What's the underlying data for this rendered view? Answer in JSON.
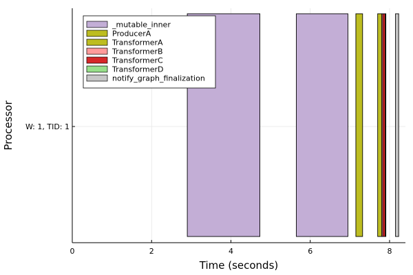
{
  "chart_data": {
    "type": "gantt",
    "xlabel": "Time (seconds)",
    "ylabel": "Processor",
    "xlim": [
      0,
      8.4
    ],
    "xticks": [
      0,
      2,
      4,
      6,
      8
    ],
    "yticks": [
      "W: 1, TID: 1"
    ],
    "grid": true,
    "legend_position": "top-left",
    "series": [
      {
        "name": "_mutable_inner",
        "color": "#C3AED6"
      },
      {
        "name": "ProducerA",
        "color": "#BDBD21"
      },
      {
        "name": "TransformerA",
        "color": "#BDBD21"
      },
      {
        "name": "TransformerB",
        "color": "#FF9B9B"
      },
      {
        "name": "TransformerC",
        "color": "#D62728"
      },
      {
        "name": "TransformerD",
        "color": "#98DF8A"
      },
      {
        "name": "notify_graph_finalization",
        "color": "#C7C7C7"
      }
    ],
    "tasks": [
      {
        "series": "_mutable_inner",
        "start": 2.9,
        "end": 4.73
      },
      {
        "series": "_mutable_inner",
        "start": 5.65,
        "end": 6.95
      },
      {
        "series": "ProducerA",
        "start": 7.15,
        "end": 7.32
      },
      {
        "series": "TransformerA",
        "start": 7.7,
        "end": 7.8
      },
      {
        "series": "TransformerB",
        "start": 7.8,
        "end": 7.83
      },
      {
        "series": "TransformerC",
        "start": 7.83,
        "end": 7.89
      },
      {
        "series": "TransformerD",
        "start": 7.89,
        "end": 7.9
      },
      {
        "series": "notify_graph_finalization",
        "start": 8.15,
        "end": 8.23
      }
    ]
  }
}
